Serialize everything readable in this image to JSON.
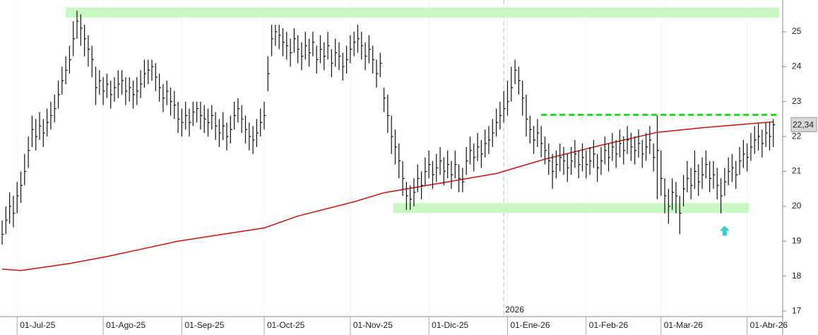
{
  "chart_data": {
    "type": "ohlc",
    "xlim": [
      -0.57,
      208.5
    ],
    "ylim": [
      16.84,
      25.91
    ],
    "yticks": [
      17,
      18,
      19,
      20,
      21,
      22,
      23,
      24,
      25
    ],
    "xticks": [
      {
        "value": 4,
        "label": "01-Jul-25"
      },
      {
        "value": 27,
        "label": "01-Ago-25"
      },
      {
        "value": 48,
        "label": "01-Sep-25"
      },
      {
        "value": 70,
        "label": "01-Oct-25"
      },
      {
        "value": 93,
        "label": "01-Nov-25"
      },
      {
        "value": 114,
        "label": "01-Dic-25"
      },
      {
        "value": 135,
        "label": "01-Ene-26"
      },
      {
        "value": 156,
        "label": "01-Feb-26"
      },
      {
        "value": 176,
        "label": "01-Mar-26"
      },
      {
        "value": 199,
        "label": "01-Abr-26"
      }
    ],
    "year_marker": {
      "value": 134,
      "label": "2026"
    },
    "color": "#111111",
    "high": [
      19.6,
      20.0,
      20.4,
      20.3,
      20.7,
      21.0,
      21.5,
      22.0,
      22.6,
      22.5,
      22.7,
      22.5,
      22.8,
      23.0,
      23.2,
      23.6,
      24.0,
      24.3,
      24.6,
      25.3,
      25.6,
      25.5,
      25.2,
      24.9,
      24.6,
      24.0,
      23.9,
      23.7,
      23.8,
      23.6,
      23.7,
      23.9,
      23.9,
      23.7,
      23.7,
      23.6,
      23.7,
      23.9,
      24.2,
      24.2,
      24.2,
      24.1,
      23.8,
      23.5,
      23.6,
      23.4,
      23.3,
      23.0,
      22.8,
      23.0,
      22.8,
      23.0,
      23.0,
      23.0,
      22.9,
      22.8,
      22.9,
      22.7,
      22.5,
      22.7,
      22.4,
      22.6,
      23.0,
      23.1,
      22.9,
      22.6,
      22.4,
      22.3,
      22.5,
      22.8,
      23.0,
      24.3,
      25.2,
      25.2,
      25.2,
      25.1,
      25.0,
      24.8,
      25.1,
      24.9,
      24.7,
      25.0,
      24.8,
      25.0,
      24.6,
      24.9,
      24.7,
      25.0,
      24.5,
      24.8,
      24.7,
      24.4,
      24.6,
      24.9,
      25.0,
      25.2,
      25.0,
      24.7,
      24.9,
      24.6,
      24.2,
      24.4,
      23.4,
      23.2,
      22.6,
      22.2,
      21.8,
      21.3,
      20.7,
      20.6,
      20.8,
      21.2,
      21.0,
      21.4,
      21.6,
      21.3,
      21.5,
      21.7,
      21.4,
      21.6,
      21.3,
      21.6,
      21.2,
      21.1,
      21.7,
      22.0,
      21.8,
      22.1,
      21.9,
      22.2,
      22.3,
      22.5,
      22.8,
      23.0,
      23.3,
      23.6,
      24.0,
      24.2,
      24.0,
      23.6,
      23.2,
      22.6,
      22.3,
      22.5,
      22.3,
      22.0,
      21.8,
      21.5,
      21.6,
      21.8,
      21.7,
      21.5,
      21.7,
      21.9,
      21.6,
      21.8,
      21.6,
      21.7,
      21.9,
      21.5,
      21.7,
      22.0,
      21.8,
      22.1,
      21.9,
      22.2,
      22.0,
      22.3,
      22.1,
      22.0,
      22.2,
      21.9,
      22.1,
      22.3,
      21.8,
      22.6,
      21.6,
      20.8,
      20.5,
      20.8,
      20.7,
      20.3,
      20.9,
      21.3,
      21.1,
      21.6,
      21.2,
      21.4,
      21.6,
      21.3,
      21.3,
      21.1,
      20.8,
      21.1,
      21.4,
      21.5,
      21.3,
      21.7,
      21.9,
      21.8,
      22.1,
      22.3,
      22.4,
      22.2,
      22.4,
      22.4,
      22.5
    ],
    "low": [
      18.9,
      19.2,
      19.5,
      19.4,
      19.8,
      20.1,
      20.6,
      21.1,
      21.7,
      21.6,
      21.9,
      21.7,
      22.0,
      22.2,
      22.4,
      22.8,
      23.2,
      23.5,
      23.8,
      24.3,
      24.8,
      24.6,
      24.3,
      24.0,
      23.7,
      22.9,
      23.2,
      22.9,
      23.1,
      22.8,
      23.0,
      23.1,
      23.2,
      22.9,
      23.0,
      22.8,
      22.9,
      23.1,
      23.4,
      23.5,
      23.6,
      23.3,
      23.0,
      22.7,
      22.9,
      22.6,
      22.5,
      22.1,
      22.0,
      22.2,
      22.0,
      22.3,
      22.4,
      22.2,
      22.1,
      22.0,
      22.2,
      21.9,
      21.7,
      21.9,
      21.6,
      21.8,
      22.2,
      22.4,
      22.1,
      21.8,
      21.6,
      21.5,
      21.7,
      22.0,
      22.2,
      23.3,
      24.3,
      24.6,
      24.5,
      24.3,
      24.2,
      24.0,
      24.4,
      24.1,
      23.9,
      24.2,
      24.0,
      24.3,
      23.8,
      24.1,
      23.9,
      24.2,
      23.7,
      24.0,
      23.9,
      23.6,
      23.8,
      24.1,
      24.3,
      24.4,
      24.2,
      23.9,
      24.1,
      23.8,
      23.4,
      23.7,
      22.7,
      22.1,
      21.5,
      21.2,
      20.8,
      20.3,
      19.9,
      19.9,
      20.0,
      20.4,
      20.2,
      20.6,
      20.8,
      20.5,
      20.7,
      20.9,
      20.6,
      20.8,
      20.5,
      20.8,
      20.4,
      20.4,
      20.9,
      21.2,
      21.0,
      21.3,
      21.1,
      21.4,
      21.5,
      21.7,
      22.0,
      22.2,
      22.4,
      22.6,
      23.0,
      23.5,
      23.2,
      22.6,
      22.0,
      21.8,
      21.5,
      21.7,
      21.4,
      21.2,
      20.9,
      20.5,
      20.8,
      21.0,
      20.9,
      20.7,
      20.9,
      21.1,
      20.8,
      21.0,
      20.8,
      20.9,
      21.1,
      20.7,
      20.9,
      21.2,
      21.0,
      21.3,
      21.1,
      21.4,
      21.2,
      21.5,
      21.3,
      21.2,
      21.4,
      21.1,
      21.3,
      21.5,
      21.0,
      20.2,
      20.3,
      19.8,
      19.5,
      19.9,
      19.8,
      19.2,
      20.0,
      20.4,
      20.2,
      20.5,
      20.3,
      20.5,
      20.8,
      20.4,
      20.5,
      20.2,
      19.8,
      20.3,
      20.6,
      20.7,
      20.5,
      20.9,
      21.1,
      21.0,
      21.3,
      21.5,
      21.6,
      21.4,
      21.7,
      21.6,
      21.7
    ],
    "close": [
      19.2,
      19.6,
      20.0,
      19.8,
      20.3,
      20.6,
      21.0,
      21.6,
      22.2,
      22.0,
      22.3,
      22.1,
      22.4,
      22.6,
      22.8,
      23.2,
      23.6,
      23.9,
      24.2,
      24.8,
      25.3,
      25.1,
      24.8,
      24.5,
      24.2,
      23.4,
      23.6,
      23.3,
      23.5,
      23.2,
      23.4,
      23.5,
      23.6,
      23.3,
      23.4,
      23.2,
      23.3,
      23.5,
      23.8,
      23.9,
      24.0,
      23.7,
      23.4,
      23.1,
      23.3,
      23.0,
      22.9,
      22.5,
      22.4,
      22.6,
      22.4,
      22.7,
      22.8,
      22.6,
      22.5,
      22.4,
      22.6,
      22.3,
      22.1,
      22.3,
      22.0,
      22.2,
      22.6,
      22.8,
      22.5,
      22.2,
      22.0,
      21.9,
      22.1,
      22.4,
      22.6,
      23.8,
      24.8,
      25.0,
      24.9,
      24.7,
      24.6,
      24.4,
      24.8,
      24.5,
      24.3,
      24.6,
      24.4,
      24.7,
      24.2,
      24.5,
      24.3,
      24.6,
      24.1,
      24.4,
      24.3,
      24.0,
      24.2,
      24.5,
      24.7,
      24.8,
      24.6,
      24.3,
      24.5,
      24.2,
      23.8,
      24.1,
      23.1,
      22.6,
      22.0,
      21.7,
      21.3,
      20.8,
      20.3,
      20.2,
      20.4,
      20.8,
      20.6,
      21.0,
      21.2,
      20.9,
      21.1,
      21.3,
      21.0,
      21.2,
      20.9,
      21.2,
      20.8,
      20.7,
      21.3,
      21.6,
      21.4,
      21.7,
      21.5,
      21.8,
      21.9,
      22.1,
      22.4,
      22.6,
      22.8,
      23.0,
      23.4,
      23.9,
      23.6,
      23.1,
      22.5,
      22.2,
      21.9,
      22.1,
      21.8,
      21.6,
      21.3,
      21.0,
      21.2,
      21.4,
      21.3,
      21.1,
      21.3,
      21.5,
      21.2,
      21.4,
      21.2,
      21.3,
      21.5,
      21.1,
      21.3,
      21.6,
      21.4,
      21.7,
      21.5,
      21.8,
      21.6,
      21.9,
      21.7,
      21.6,
      21.8,
      21.5,
      21.7,
      21.9,
      21.4,
      21.6,
      20.8,
      20.3,
      20.0,
      20.4,
      20.3,
      19.8,
      20.5,
      20.8,
      20.6,
      21.0,
      20.7,
      20.9,
      21.2,
      20.8,
      20.9,
      20.6,
      20.3,
      20.7,
      21.0,
      21.1,
      20.9,
      21.3,
      21.5,
      21.4,
      21.7,
      21.9,
      22.0,
      21.8,
      22.1,
      22.0,
      22.34
    ],
    "ma": {
      "color": "#cc1111",
      "x": [
        0,
        5,
        18,
        28,
        37,
        47,
        56,
        70,
        79,
        94,
        102,
        113,
        132,
        145,
        160,
        175,
        188,
        206
      ],
      "values": [
        18.2,
        18.16,
        18.36,
        18.56,
        18.77,
        19.0,
        19.15,
        19.38,
        19.72,
        20.13,
        20.39,
        20.59,
        20.94,
        21.35,
        21.75,
        22.12,
        22.26,
        22.42
      ]
    },
    "levels": [
      {
        "value": 25.55,
        "from": 17,
        "to": 207.5,
        "style": "band",
        "color": "#c9f7c3"
      },
      {
        "value": 19.95,
        "from": 104.5,
        "to": 199.5,
        "style": "band",
        "color": "#c9f7c3"
      },
      {
        "value": 22.62,
        "from": 144,
        "to": 207,
        "style": "dashed",
        "color": "#22dd22"
      }
    ],
    "arrow": {
      "x": 193,
      "value": 19.3,
      "color": "#33cccc"
    },
    "last_price": {
      "value": 22.34,
      "label": "22,34"
    }
  }
}
